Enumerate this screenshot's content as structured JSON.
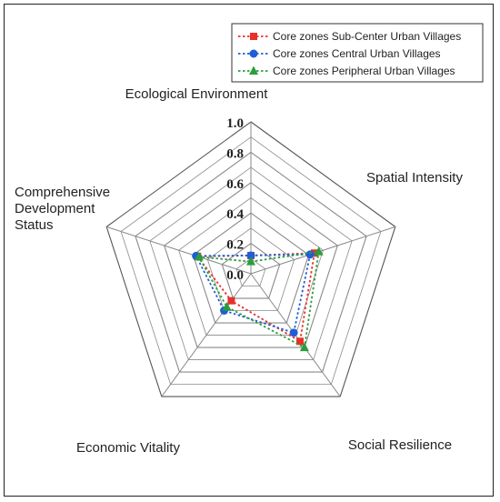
{
  "chart_data": {
    "type": "radar",
    "axes": [
      {
        "label_lines": [
          "Ecological Environment"
        ]
      },
      {
        "label_lines": [
          "Spatial Intensity"
        ]
      },
      {
        "label_lines": [
          "Social Resilience"
        ]
      },
      {
        "label_lines": [
          "Economic Vitality"
        ]
      },
      {
        "label_lines": [
          "Comprehensive",
          "Development",
          "Status"
        ]
      }
    ],
    "range": [
      0,
      1
    ],
    "ticks": [
      "0.0",
      "0.2",
      "0.4",
      "0.6",
      "0.8",
      "1.0"
    ],
    "grid_levels": 10,
    "grid": true,
    "legend_position": "top-right",
    "series": [
      {
        "name": "Core zones Sub-Center Urban Villages",
        "color": "#e8302a",
        "marker": "square",
        "values": [
          0.12,
          0.44,
          0.55,
          0.22,
          0.37
        ]
      },
      {
        "name": "Core zones Central Urban Villages",
        "color": "#1f5fd6",
        "marker": "circle",
        "values": [
          0.12,
          0.41,
          0.48,
          0.3,
          0.38
        ]
      },
      {
        "name": "Core zones Peripheral Urban Villages",
        "color": "#2a9d3c",
        "marker": "triangle",
        "values": [
          0.08,
          0.47,
          0.6,
          0.27,
          0.36
        ]
      }
    ]
  }
}
